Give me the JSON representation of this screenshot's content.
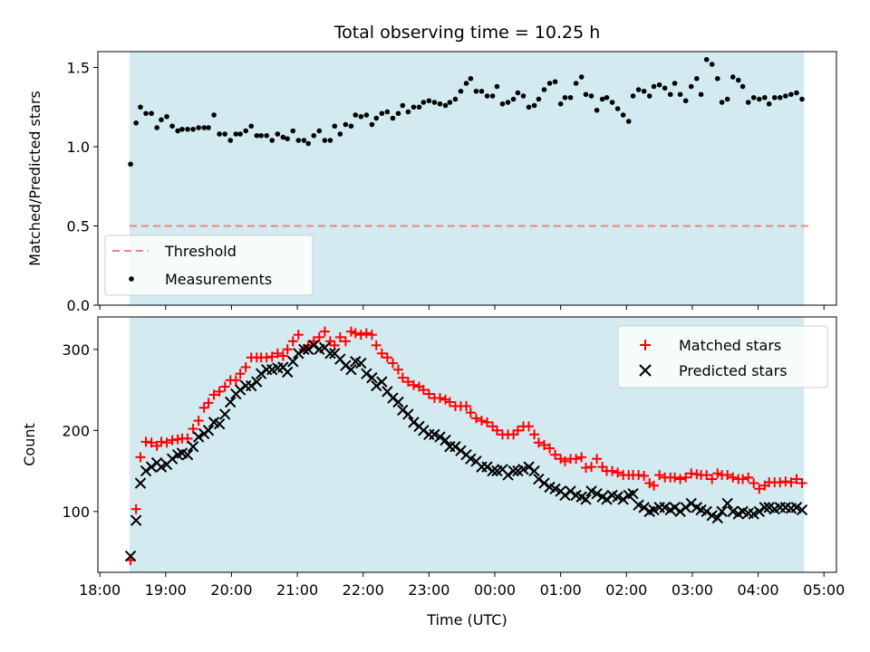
{
  "chart_data": [
    {
      "type": "scatter",
      "title": "Total observing time = 10.25 h",
      "ylabel": "Matched/Predicted stars",
      "xlabel": "",
      "ylim": [
        0,
        1.6
      ],
      "yticks": [
        "0.0",
        "0.5",
        "1.0",
        "1.5"
      ],
      "observing_window": [
        "18:27",
        "04:42"
      ],
      "shading_color": "#d3eaf1",
      "legend_position": "lower-left",
      "threshold": {
        "name": "Threshold",
        "value": 0.5,
        "color": "#f08080",
        "style": "dashed"
      },
      "series": [
        {
          "name": "Measurements",
          "color": "#000000",
          "marker": "dot",
          "x": [
            "18:28",
            "18:33",
            "18:37",
            "18:42",
            "18:47",
            "18:52",
            "18:56",
            "19:01",
            "19:06",
            "19:11",
            "19:15",
            "19:20",
            "19:25",
            "19:30",
            "19:35",
            "19:39",
            "19:44",
            "19:49",
            "19:54",
            "19:59",
            "20:04",
            "20:08",
            "20:13",
            "20:18",
            "20:23",
            "20:27",
            "20:32",
            "20:37",
            "20:42",
            "20:47",
            "20:51",
            "20:56",
            "21:01",
            "21:06",
            "21:10",
            "21:15",
            "21:20",
            "21:25",
            "21:30",
            "21:34",
            "21:39",
            "21:44",
            "21:49",
            "21:53",
            "21:58",
            "22:03",
            "22:08",
            "22:12",
            "22:17",
            "22:22",
            "22:27",
            "22:32",
            "22:36",
            "22:41",
            "22:46",
            "22:51",
            "22:55",
            "23:00",
            "23:05",
            "23:10",
            "23:15",
            "23:19",
            "23:24",
            "23:29",
            "23:34",
            "23:38",
            "23:43",
            "23:48",
            "23:53",
            "23:58",
            "00:02",
            "00:07",
            "00:12",
            "00:17",
            "00:21",
            "00:26",
            "00:31",
            "00:36",
            "00:40",
            "00:45",
            "00:50",
            "00:55",
            "01:00",
            "01:04",
            "01:09",
            "01:14",
            "01:19",
            "01:23",
            "01:28",
            "01:33",
            "01:38",
            "01:42",
            "01:47",
            "01:52",
            "01:57",
            "02:02",
            "02:06",
            "02:11",
            "02:16",
            "02:21",
            "02:25",
            "02:30",
            "02:35",
            "02:40",
            "02:44",
            "02:49",
            "02:54",
            "02:59",
            "03:04",
            "03:08",
            "03:13",
            "03:18",
            "03:23",
            "03:27",
            "03:32",
            "03:37",
            "03:42",
            "03:46",
            "03:51",
            "03:56",
            "04:01",
            "04:06",
            "04:10",
            "04:15",
            "04:20",
            "04:25",
            "04:30",
            "04:35",
            "04:40"
          ],
          "values": [
            0.89,
            1.15,
            1.25,
            1.21,
            1.21,
            1.12,
            1.17,
            1.19,
            1.13,
            1.1,
            1.11,
            1.11,
            1.11,
            1.12,
            1.12,
            1.12,
            1.2,
            1.08,
            1.08,
            1.04,
            1.08,
            1.08,
            1.1,
            1.13,
            1.07,
            1.07,
            1.07,
            1.04,
            1.08,
            1.06,
            1.05,
            1.1,
            1.04,
            1.04,
            1.02,
            1.07,
            1.1,
            1.04,
            1.04,
            1.13,
            1.08,
            1.14,
            1.13,
            1.2,
            1.19,
            1.2,
            1.14,
            1.18,
            1.21,
            1.22,
            1.18,
            1.21,
            1.26,
            1.22,
            1.25,
            1.25,
            1.28,
            1.29,
            1.28,
            1.27,
            1.26,
            1.28,
            1.3,
            1.35,
            1.4,
            1.43,
            1.35,
            1.35,
            1.32,
            1.32,
            1.38,
            1.27,
            1.28,
            1.3,
            1.34,
            1.32,
            1.25,
            1.26,
            1.3,
            1.36,
            1.4,
            1.41,
            1.27,
            1.31,
            1.31,
            1.4,
            1.44,
            1.33,
            1.32,
            1.23,
            1.3,
            1.31,
            1.28,
            1.24,
            1.2,
            1.16,
            1.32,
            1.36,
            1.35,
            1.32,
            1.38,
            1.39,
            1.37,
            1.33,
            1.4,
            1.33,
            1.29,
            1.38,
            1.43,
            1.33,
            1.55,
            1.52,
            1.43,
            1.28,
            1.3,
            1.44,
            1.42,
            1.38,
            1.28,
            1.31,
            1.3,
            1.31,
            1.27,
            1.31,
            1.31,
            1.32,
            1.33,
            1.34,
            1.3
          ]
        }
      ]
    },
    {
      "type": "scatter",
      "title": "",
      "ylabel": "Count",
      "xlabel": "Time (UTC)",
      "ylim": [
        25,
        340
      ],
      "yticks": [
        "100",
        "200",
        "300"
      ],
      "xticks": [
        "18:00",
        "19:00",
        "20:00",
        "21:00",
        "22:00",
        "23:00",
        "00:00",
        "01:00",
        "02:00",
        "03:00",
        "04:00",
        "05:00"
      ],
      "observing_window": [
        "18:27",
        "04:42"
      ],
      "shading_color": "#d3eaf1",
      "legend_position": "top-right",
      "series": [
        {
          "name": "Matched stars",
          "color": "#ff0000",
          "marker": "plus",
          "x": [
            "18:28",
            "18:33",
            "18:37",
            "18:42",
            "18:47",
            "18:52",
            "18:56",
            "19:01",
            "19:06",
            "19:11",
            "19:15",
            "19:20",
            "19:25",
            "19:30",
            "19:35",
            "19:39",
            "19:44",
            "19:49",
            "19:54",
            "19:59",
            "20:04",
            "20:08",
            "20:13",
            "20:18",
            "20:23",
            "20:27",
            "20:32",
            "20:37",
            "20:42",
            "20:47",
            "20:51",
            "20:56",
            "21:01",
            "21:06",
            "21:10",
            "21:15",
            "21:20",
            "21:25",
            "21:30",
            "21:34",
            "21:39",
            "21:44",
            "21:49",
            "21:53",
            "21:58",
            "22:03",
            "22:08",
            "22:12",
            "22:17",
            "22:22",
            "22:27",
            "22:32",
            "22:36",
            "22:41",
            "22:46",
            "22:51",
            "22:55",
            "23:00",
            "23:05",
            "23:10",
            "23:15",
            "23:19",
            "23:24",
            "23:29",
            "23:34",
            "23:38",
            "23:43",
            "23:48",
            "23:53",
            "23:58",
            "00:02",
            "00:07",
            "00:12",
            "00:17",
            "00:21",
            "00:26",
            "00:31",
            "00:36",
            "00:40",
            "00:45",
            "00:50",
            "00:55",
            "01:00",
            "01:04",
            "01:09",
            "01:14",
            "01:19",
            "01:23",
            "01:28",
            "01:33",
            "01:38",
            "01:42",
            "01:47",
            "01:52",
            "01:57",
            "02:02",
            "02:06",
            "02:11",
            "02:16",
            "02:21",
            "02:25",
            "02:30",
            "02:35",
            "02:40",
            "02:44",
            "02:49",
            "02:54",
            "02:59",
            "03:04",
            "03:08",
            "03:13",
            "03:18",
            "03:23",
            "03:27",
            "03:32",
            "03:37",
            "03:42",
            "03:46",
            "03:51",
            "03:56",
            "04:01",
            "04:06",
            "04:10",
            "04:15",
            "04:20",
            "04:25",
            "04:30",
            "04:35",
            "04:40"
          ],
          "values": [
            40,
            103,
            167,
            186,
            185,
            181,
            186,
            185,
            188,
            189,
            190,
            190,
            202,
            212,
            228,
            234,
            244,
            248,
            254,
            262,
            262,
            270,
            278,
            290,
            290,
            290,
            290,
            291,
            295,
            292,
            300,
            310,
            318,
            300,
            305,
            310,
            315,
            322,
            310,
            305,
            315,
            310,
            322,
            320,
            318,
            320,
            318,
            305,
            295,
            290,
            283,
            275,
            265,
            260,
            256,
            254,
            250,
            245,
            240,
            240,
            238,
            235,
            230,
            230,
            230,
            222,
            215,
            212,
            210,
            205,
            200,
            195,
            195,
            195,
            200,
            205,
            205,
            195,
            185,
            182,
            178,
            170,
            165,
            162,
            165,
            165,
            167,
            154,
            155,
            165,
            155,
            150,
            150,
            148,
            145,
            145,
            145,
            145,
            144,
            135,
            132,
            145,
            142,
            142,
            142,
            140,
            142,
            147,
            146,
            145,
            145,
            140,
            147,
            145,
            145,
            142,
            140,
            140,
            142,
            135,
            128,
            132,
            136,
            136,
            136,
            137,
            136,
            140,
            135
          ]
        },
        {
          "name": "Predicted stars",
          "color": "#000000",
          "marker": "x",
          "x": [
            "18:28",
            "18:33",
            "18:37",
            "18:42",
            "18:47",
            "18:52",
            "18:56",
            "19:01",
            "19:06",
            "19:11",
            "19:15",
            "19:20",
            "19:25",
            "19:30",
            "19:35",
            "19:39",
            "19:44",
            "19:49",
            "19:54",
            "19:59",
            "20:04",
            "20:08",
            "20:13",
            "20:18",
            "20:23",
            "20:27",
            "20:32",
            "20:37",
            "20:42",
            "20:47",
            "20:51",
            "20:56",
            "21:01",
            "21:06",
            "21:10",
            "21:15",
            "21:20",
            "21:25",
            "21:30",
            "21:34",
            "21:39",
            "21:44",
            "21:49",
            "21:53",
            "21:58",
            "22:03",
            "22:08",
            "22:12",
            "22:17",
            "22:22",
            "22:27",
            "22:32",
            "22:36",
            "22:41",
            "22:46",
            "22:51",
            "22:55",
            "23:00",
            "23:05",
            "23:10",
            "23:15",
            "23:19",
            "23:24",
            "23:29",
            "23:34",
            "23:38",
            "23:43",
            "23:48",
            "23:53",
            "23:58",
            "00:02",
            "00:07",
            "00:12",
            "00:17",
            "00:21",
            "00:26",
            "00:31",
            "00:36",
            "00:40",
            "00:45",
            "00:50",
            "00:55",
            "01:00",
            "01:04",
            "01:09",
            "01:14",
            "01:19",
            "01:23",
            "01:28",
            "01:33",
            "01:38",
            "01:42",
            "01:47",
            "01:52",
            "01:57",
            "02:02",
            "02:06",
            "02:11",
            "02:16",
            "02:21",
            "02:25",
            "02:30",
            "02:35",
            "02:40",
            "02:44",
            "02:49",
            "02:54",
            "02:59",
            "03:04",
            "03:08",
            "03:13",
            "03:18",
            "03:23",
            "03:27",
            "03:32",
            "03:37",
            "03:42",
            "03:46",
            "03:51",
            "03:56",
            "04:01",
            "04:06",
            "04:10",
            "04:15",
            "04:20",
            "04:25",
            "04:30",
            "04:35",
            "04:40"
          ],
          "values": [
            45,
            89,
            135,
            150,
            155,
            160,
            155,
            158,
            165,
            170,
            172,
            170,
            180,
            192,
            196,
            200,
            210,
            208,
            220,
            235,
            245,
            250,
            255,
            255,
            260,
            270,
            275,
            275,
            277,
            278,
            272,
            285,
            295,
            300,
            300,
            305,
            300,
            302,
            295,
            295,
            288,
            280,
            275,
            285,
            283,
            270,
            265,
            255,
            260,
            248,
            240,
            235,
            225,
            220,
            210,
            205,
            200,
            195,
            195,
            192,
            188,
            180,
            180,
            175,
            170,
            165,
            162,
            155,
            155,
            150,
            150,
            152,
            145,
            150,
            150,
            152,
            155,
            150,
            140,
            135,
            130,
            128,
            125,
            120,
            125,
            120,
            118,
            115,
            125,
            122,
            118,
            115,
            120,
            118,
            115,
            120,
            122,
            108,
            105,
            100,
            102,
            105,
            105,
            102,
            105,
            100,
            105,
            110,
            105,
            102,
            100,
            95,
            92,
            100,
            110,
            100,
            97,
            100,
            98,
            97,
            100,
            105,
            105,
            103,
            105,
            105,
            104,
            105,
            102
          ]
        }
      ]
    }
  ]
}
